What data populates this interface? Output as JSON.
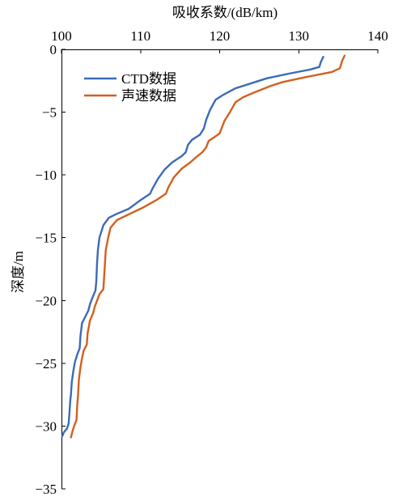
{
  "chart_data": {
    "type": "line",
    "xlabel": "吸收系数/(dB/km)",
    "ylabel": "深度/m",
    "xlim": [
      100,
      140
    ],
    "ylim": [
      -35,
      0
    ],
    "xticks": [
      100,
      110,
      120,
      130,
      140
    ],
    "yticks": [
      0,
      -5,
      -10,
      -15,
      -20,
      -25,
      -30,
      -35
    ],
    "xtick_labels": [
      "100",
      "110",
      "120",
      "130",
      "140"
    ],
    "ytick_labels": [
      "0",
      "−5",
      "−10",
      "−15",
      "−20",
      "−25",
      "−30",
      "−35"
    ],
    "x_axis_position": "top",
    "grid": false,
    "legend_position": "upper-left",
    "series": [
      {
        "name": "CTD数据",
        "color": "#3B6BB8",
        "points": [
          [
            133.1,
            -0.6
          ],
          [
            132.8,
            -1.0
          ],
          [
            132.6,
            -1.4
          ],
          [
            131.5,
            -1.6
          ],
          [
            129.0,
            -1.9
          ],
          [
            126.0,
            -2.3
          ],
          [
            124.5,
            -2.6
          ],
          [
            122.0,
            -3.1
          ],
          [
            120.5,
            -3.6
          ],
          [
            119.5,
            -4.0
          ],
          [
            118.8,
            -4.8
          ],
          [
            118.3,
            -5.6
          ],
          [
            118.0,
            -6.3
          ],
          [
            117.5,
            -6.8
          ],
          [
            116.5,
            -7.2
          ],
          [
            116.0,
            -7.6
          ],
          [
            115.7,
            -8.2
          ],
          [
            115.2,
            -8.5
          ],
          [
            114.0,
            -9.0
          ],
          [
            113.0,
            -9.6
          ],
          [
            112.2,
            -10.3
          ],
          [
            111.5,
            -11.1
          ],
          [
            111.2,
            -11.5
          ],
          [
            110.0,
            -12.0
          ],
          [
            108.5,
            -12.7
          ],
          [
            107.0,
            -13.1
          ],
          [
            106.0,
            -13.4
          ],
          [
            105.3,
            -14.0
          ],
          [
            104.8,
            -15.0
          ],
          [
            104.6,
            -16.0
          ],
          [
            104.5,
            -17.0
          ],
          [
            104.4,
            -18.5
          ],
          [
            104.3,
            -19.2
          ],
          [
            103.9,
            -19.8
          ],
          [
            103.6,
            -20.3
          ],
          [
            103.4,
            -20.8
          ],
          [
            103.0,
            -21.3
          ],
          [
            102.6,
            -21.8
          ],
          [
            102.4,
            -22.8
          ],
          [
            102.3,
            -23.8
          ],
          [
            102.0,
            -24.3
          ],
          [
            101.7,
            -24.9
          ],
          [
            101.5,
            -25.6
          ],
          [
            101.3,
            -26.5
          ],
          [
            101.2,
            -27.5
          ],
          [
            101.1,
            -28.0
          ],
          [
            101.0,
            -29.0
          ],
          [
            100.9,
            -29.8
          ],
          [
            100.7,
            -30.2
          ],
          [
            100.3,
            -30.5
          ],
          [
            100.1,
            -30.8
          ]
        ]
      },
      {
        "name": "声速数据",
        "color": "#D2601F",
        "points": [
          [
            135.8,
            -0.5
          ],
          [
            135.5,
            -0.9
          ],
          [
            135.2,
            -1.5
          ],
          [
            134.2,
            -1.8
          ],
          [
            131.0,
            -2.2
          ],
          [
            128.0,
            -2.6
          ],
          [
            126.5,
            -2.9
          ],
          [
            124.5,
            -3.4
          ],
          [
            123.0,
            -3.8
          ],
          [
            122.0,
            -4.2
          ],
          [
            121.3,
            -5.0
          ],
          [
            120.6,
            -5.7
          ],
          [
            120.3,
            -6.2
          ],
          [
            120.0,
            -6.7
          ],
          [
            119.3,
            -7.0
          ],
          [
            118.6,
            -7.3
          ],
          [
            118.3,
            -7.8
          ],
          [
            117.8,
            -8.2
          ],
          [
            117.0,
            -8.6
          ],
          [
            116.3,
            -9.0
          ],
          [
            115.2,
            -9.5
          ],
          [
            114.2,
            -10.2
          ],
          [
            113.5,
            -11.0
          ],
          [
            113.2,
            -11.5
          ],
          [
            112.0,
            -12.0
          ],
          [
            110.3,
            -12.6
          ],
          [
            108.3,
            -13.2
          ],
          [
            107.0,
            -13.6
          ],
          [
            106.2,
            -14.2
          ],
          [
            105.9,
            -15.0
          ],
          [
            105.6,
            -16.0
          ],
          [
            105.5,
            -17.0
          ],
          [
            105.4,
            -18.0
          ],
          [
            105.3,
            -19.1
          ],
          [
            104.8,
            -19.5
          ],
          [
            104.5,
            -20.0
          ],
          [
            104.2,
            -20.5
          ],
          [
            104.0,
            -21.0
          ],
          [
            103.6,
            -21.6
          ],
          [
            103.3,
            -22.6
          ],
          [
            103.2,
            -23.5
          ],
          [
            102.8,
            -24.0
          ],
          [
            102.6,
            -24.6
          ],
          [
            102.4,
            -25.3
          ],
          [
            102.2,
            -26.3
          ],
          [
            102.1,
            -27.5
          ],
          [
            102.0,
            -28.3
          ],
          [
            101.9,
            -29.5
          ],
          [
            101.6,
            -30.0
          ],
          [
            101.4,
            -30.4
          ],
          [
            101.2,
            -30.9
          ]
        ]
      }
    ]
  }
}
